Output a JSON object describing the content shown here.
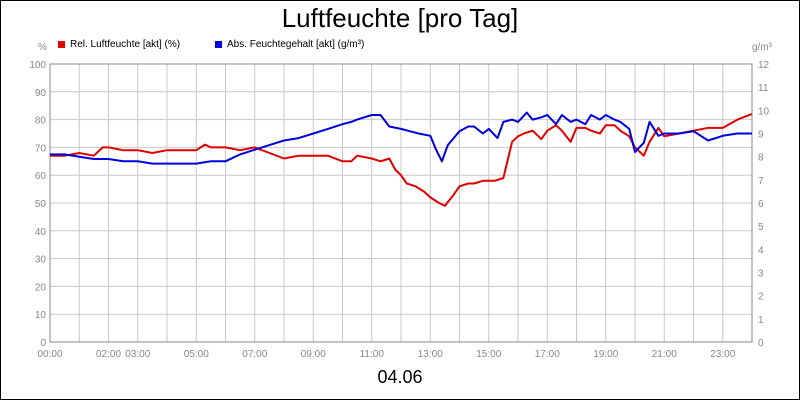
{
  "chart_data": {
    "type": "line",
    "title": "Luftfeuchte [pro Tag]",
    "xlabel": "04.06",
    "y_left_unit": "%",
    "y_right_unit": "g/m³",
    "y_left_range": [
      0,
      100
    ],
    "y_right_range": [
      0,
      12
    ],
    "y_left_ticks": [
      "0",
      "10",
      "20",
      "30",
      "40",
      "50",
      "60",
      "70",
      "80",
      "90",
      "100"
    ],
    "y_right_ticks": [
      "0",
      "1",
      "2",
      "3",
      "4",
      "5",
      "6",
      "7",
      "8",
      "9",
      "10",
      "11",
      "12"
    ],
    "x_range_hours": [
      0,
      24
    ],
    "x_tick_labels": [
      "00:00",
      "02:00",
      "03:00",
      "05:00",
      "07:00",
      "09:00",
      "11:00",
      "13:00",
      "15:00",
      "17:00",
      "19:00",
      "21:00",
      "23:00"
    ],
    "grid": true,
    "legend_position": "top-left",
    "colors": {
      "rel": "#e00000",
      "abs": "#0000dd",
      "grid": "#c8c8c8",
      "tick_text": "#888888"
    },
    "series": [
      {
        "name": "Rel. Luftfeuchte [akt] (%)",
        "axis": "left",
        "x": [
          0,
          0.5,
          1,
          1.5,
          1.8,
          2,
          2.5,
          3,
          3.5,
          4,
          4.5,
          5,
          5.3,
          5.5,
          6,
          6.5,
          7,
          7.5,
          8,
          8.5,
          9,
          9.5,
          10,
          10.3,
          10.5,
          11,
          11.3,
          11.6,
          11.8,
          12,
          12.2,
          12.5,
          12.8,
          13,
          13.3,
          13.5,
          13.8,
          14,
          14.3,
          14.5,
          14.8,
          15,
          15.2,
          15.5,
          15.8,
          16,
          16.2,
          16.5,
          16.8,
          17,
          17.3,
          17.5,
          17.8,
          18,
          18.3,
          18.5,
          18.8,
          19,
          19.3,
          19.5,
          19.8,
          20,
          20.3,
          20.5,
          20.8,
          21,
          21.5,
          22,
          22.5,
          23,
          23.5,
          24
        ],
        "values": [
          67,
          67,
          68,
          67,
          70,
          70,
          69,
          69,
          68,
          69,
          69,
          69,
          71,
          70,
          70,
          69,
          70,
          68,
          66,
          67,
          67,
          67,
          65,
          65,
          67,
          66,
          65,
          66,
          62,
          60,
          57,
          56,
          54,
          52,
          50,
          49,
          53,
          56,
          57,
          57,
          58,
          58,
          58,
          59,
          72,
          74,
          75,
          76,
          73,
          76,
          78,
          76,
          72,
          77,
          77,
          76,
          75,
          78,
          78,
          76,
          74,
          70,
          67,
          72,
          77,
          74,
          75,
          76,
          77,
          77,
          80,
          82
        ]
      },
      {
        "name": "Abs. Feuchtegehalt [akt] (g/m³)",
        "axis": "right",
        "x": [
          0,
          0.5,
          1,
          1.5,
          2,
          2.5,
          3,
          3.5,
          4,
          4.5,
          5,
          5.5,
          6,
          6.5,
          7,
          7.5,
          8,
          8.5,
          9,
          9.5,
          10,
          10.3,
          10.5,
          11,
          11.3,
          11.6,
          12,
          12.3,
          12.6,
          13,
          13.2,
          13.4,
          13.6,
          13.8,
          14,
          14.3,
          14.5,
          14.8,
          15,
          15.3,
          15.5,
          15.8,
          16,
          16.3,
          16.5,
          16.8,
          17,
          17.3,
          17.5,
          17.8,
          18,
          18.3,
          18.5,
          18.8,
          19,
          19.3,
          19.5,
          19.8,
          20,
          20.3,
          20.5,
          20.8,
          21,
          21.5,
          22,
          22.5,
          23,
          23.5,
          24
        ],
        "values": [
          8.1,
          8.1,
          8.0,
          7.9,
          7.9,
          7.8,
          7.8,
          7.7,
          7.7,
          7.7,
          7.7,
          7.8,
          7.8,
          8.1,
          8.3,
          8.5,
          8.7,
          8.8,
          9.0,
          9.2,
          9.4,
          9.5,
          9.6,
          9.8,
          9.8,
          9.3,
          9.2,
          9.1,
          9.0,
          8.9,
          8.3,
          7.8,
          8.5,
          8.8,
          9.1,
          9.3,
          9.3,
          9.0,
          9.2,
          8.8,
          9.5,
          9.6,
          9.5,
          9.9,
          9.6,
          9.7,
          9.8,
          9.4,
          9.8,
          9.5,
          9.6,
          9.4,
          9.8,
          9.6,
          9.8,
          9.6,
          9.5,
          9.2,
          8.2,
          8.6,
          9.5,
          8.9,
          9.0,
          9.0,
          9.1,
          8.7,
          8.9,
          9.0,
          9.0
        ]
      }
    ]
  }
}
